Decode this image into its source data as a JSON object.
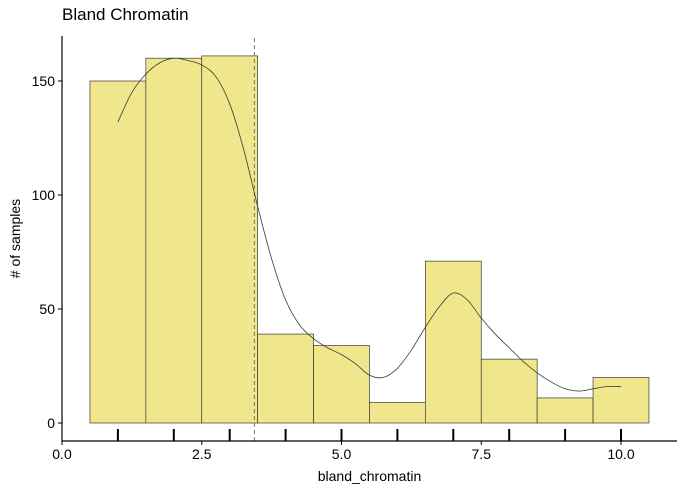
{
  "chart_data": {
    "type": "histogram",
    "title": "Bland Chromatin",
    "xlabel": "bland_chromatin",
    "ylabel": "# of samples",
    "xlim": [
      0,
      10.5
    ],
    "ylim": [
      0,
      168
    ],
    "x_ticks": [
      0.0,
      2.5,
      5.0,
      7.5,
      10.0
    ],
    "x_tick_labels": [
      "0.0",
      "2.5",
      "5.0",
      "7.5",
      "10.0"
    ],
    "y_ticks": [
      0,
      50,
      100,
      150
    ],
    "y_tick_labels": [
      "0",
      "50",
      "100",
      "150"
    ],
    "bin_width": 1,
    "bins": [
      {
        "center": 1,
        "count": 150
      },
      {
        "center": 2,
        "count": 160
      },
      {
        "center": 3,
        "count": 161
      },
      {
        "center": 4,
        "count": 39
      },
      {
        "center": 5,
        "count": 34
      },
      {
        "center": 6,
        "count": 9
      },
      {
        "center": 7,
        "count": 71
      },
      {
        "center": 8,
        "count": 28
      },
      {
        "center": 9,
        "count": 11
      },
      {
        "center": 10,
        "count": 20
      }
    ],
    "rug_x": [
      1,
      2,
      3,
      4,
      5,
      6,
      7,
      8,
      9,
      10
    ],
    "mean_line_x": 3.44,
    "density_curve": {
      "x": [
        1.0,
        1.25,
        1.5,
        1.75,
        2.0,
        2.25,
        2.5,
        2.75,
        3.0,
        3.25,
        3.5,
        3.75,
        4.0,
        4.25,
        4.5,
        4.75,
        5.0,
        5.25,
        5.5,
        5.75,
        6.0,
        6.25,
        6.5,
        6.75,
        7.0,
        7.25,
        7.5,
        7.75,
        8.0,
        8.25,
        8.5,
        8.75,
        9.0,
        9.25,
        9.5,
        9.75,
        10.0
      ],
      "y": [
        132,
        145,
        153,
        158,
        160,
        159,
        157,
        152,
        140,
        120,
        95,
        72,
        54,
        43,
        37,
        33,
        30,
        26,
        21,
        20,
        24,
        32,
        42,
        51,
        57,
        54,
        46,
        39,
        33,
        27,
        22,
        18,
        15,
        14,
        15,
        16,
        16
      ]
    },
    "colors": {
      "bar_fill": "#f0e68c",
      "bar_stroke": "#3a3a3a",
      "axis": "#000000",
      "curve": "#3a3a3a",
      "mean_line": "#555555"
    },
    "grid": false,
    "legend": "none"
  }
}
